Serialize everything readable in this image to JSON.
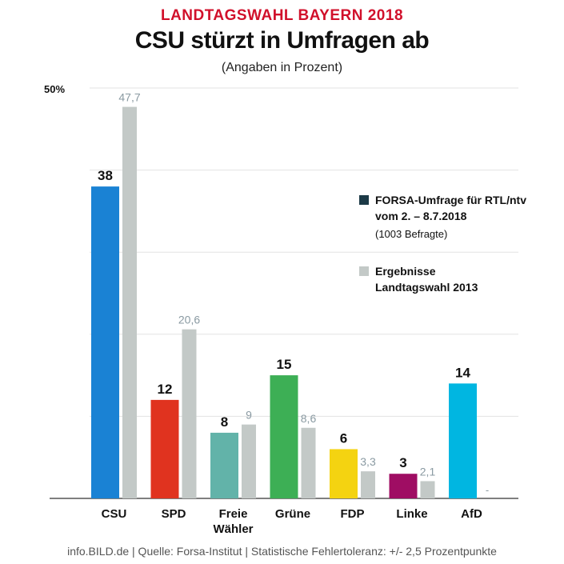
{
  "header": {
    "kicker": "LANDTAGSWAHL BAYERN 2018",
    "title": "CSU stürzt in Umfragen ab",
    "subtitle": "(Angaben in Prozent)"
  },
  "footer": "info.BILD.de | Quelle: Forsa-Institut | Statistische Fehlertoleranz: +/- 2,5 Prozentpunkte",
  "legend": {
    "forsa_line1": "FORSA-Umfrage für RTL/ntv",
    "forsa_line2": "vom 2. – 8.7.2018",
    "forsa_note": "(1003 Befragte)",
    "result_line1": "Ergebnisse",
    "result_line2": "Landtagswahl 2013",
    "forsa_color": "#1c3a47",
    "result_color": "#c3c9c7"
  },
  "chart_data": {
    "type": "bar",
    "title": "CSU stürzt in Umfragen ab",
    "subtitle": "(Angaben in Prozent)",
    "y_max_label": "50%",
    "ylim": [
      0,
      50
    ],
    "grid": true,
    "legend_position": "right",
    "categories": [
      "CSU",
      "SPD",
      "Freie Wähler",
      "Grüne",
      "FDP",
      "Linke",
      "AfD"
    ],
    "category_label_lines": [
      [
        "CSU"
      ],
      [
        "SPD"
      ],
      [
        "Freie",
        "Wähler"
      ],
      [
        "Grüne"
      ],
      [
        "FDP"
      ],
      [
        "Linke"
      ],
      [
        "AfD"
      ]
    ],
    "series": [
      {
        "name": "FORSA-Umfrage für RTL/ntv vom 2. – 8.7.2018",
        "values": [
          38,
          12,
          8,
          15,
          6,
          3,
          14
        ],
        "labels": [
          "38",
          "12",
          "8",
          "15",
          "6",
          "3",
          "14"
        ],
        "colors": [
          "#1a82d4",
          "#e0331f",
          "#62b3a9",
          "#3daf55",
          "#f4d311",
          "#9f0d63",
          "#00b6e1"
        ]
      },
      {
        "name": "Ergebnisse Landtagswahl 2013",
        "values": [
          47.7,
          20.6,
          9,
          8.6,
          3.3,
          2.1,
          null
        ],
        "labels": [
          "47,7",
          "20,6",
          "9",
          "8,6",
          "3,3",
          "2,1",
          "-"
        ],
        "color": "#c3c9c7"
      }
    ]
  }
}
